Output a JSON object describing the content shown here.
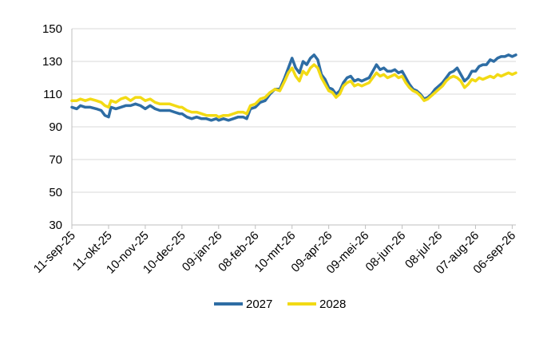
{
  "chart_data": {
    "type": "line",
    "ylim": [
      30,
      150
    ],
    "yticks": [
      30,
      50,
      70,
      90,
      110,
      130,
      150
    ],
    "xlim": [
      "2025-09-11",
      "2026-09-09"
    ],
    "xticks": [
      {
        "date": "2025-09-11",
        "label": "11-sep-25"
      },
      {
        "date": "2025-10-11",
        "label": "11-okt-25"
      },
      {
        "date": "2025-11-10",
        "label": "10-nov-25"
      },
      {
        "date": "2025-12-10",
        "label": "10-dec-25"
      },
      {
        "date": "2026-01-09",
        "label": "09-jan-26"
      },
      {
        "date": "2026-02-08",
        "label": "08-feb-26"
      },
      {
        "date": "2026-03-10",
        "label": "10-mrt-26"
      },
      {
        "date": "2026-04-09",
        "label": "09-apr-26"
      },
      {
        "date": "2026-05-09",
        "label": "09-mei-26"
      },
      {
        "date": "2026-06-08",
        "label": "08-jun-26"
      },
      {
        "date": "2026-07-08",
        "label": "08-jul-26"
      },
      {
        "date": "2026-08-07",
        "label": "07-aug-26"
      },
      {
        "date": "2026-09-06",
        "label": "06-sep-26"
      }
    ],
    "grid": "horizontal",
    "legend_position": "bottom",
    "series": [
      {
        "name": "2027",
        "color": "#2E6DA4",
        "points": [
          [
            "2025-09-11",
            102
          ],
          [
            "2025-09-15",
            101
          ],
          [
            "2025-09-18",
            103
          ],
          [
            "2025-09-22",
            102
          ],
          [
            "2025-09-26",
            102
          ],
          [
            "2025-10-01",
            101
          ],
          [
            "2025-10-05",
            100
          ],
          [
            "2025-10-08",
            97
          ],
          [
            "2025-10-11",
            96
          ],
          [
            "2025-10-13",
            102
          ],
          [
            "2025-10-17",
            101
          ],
          [
            "2025-10-21",
            102
          ],
          [
            "2025-10-25",
            103
          ],
          [
            "2025-10-29",
            103
          ],
          [
            "2025-11-02",
            104
          ],
          [
            "2025-11-06",
            103
          ],
          [
            "2025-11-10",
            101
          ],
          [
            "2025-11-14",
            103
          ],
          [
            "2025-11-18",
            101
          ],
          [
            "2025-11-22",
            100
          ],
          [
            "2025-11-26",
            100
          ],
          [
            "2025-11-30",
            100
          ],
          [
            "2025-12-04",
            99
          ],
          [
            "2025-12-08",
            98
          ],
          [
            "2025-12-10",
            98
          ],
          [
            "2025-12-14",
            96
          ],
          [
            "2025-12-18",
            95
          ],
          [
            "2025-12-22",
            96
          ],
          [
            "2025-12-26",
            95
          ],
          [
            "2025-12-30",
            95
          ],
          [
            "2026-01-03",
            94
          ],
          [
            "2026-01-07",
            95
          ],
          [
            "2026-01-09",
            94
          ],
          [
            "2026-01-13",
            95
          ],
          [
            "2026-01-17",
            94
          ],
          [
            "2026-01-21",
            95
          ],
          [
            "2026-01-25",
            96
          ],
          [
            "2026-01-29",
            96
          ],
          [
            "2026-02-01",
            95
          ],
          [
            "2026-02-04",
            101
          ],
          [
            "2026-02-08",
            102
          ],
          [
            "2026-02-12",
            105
          ],
          [
            "2026-02-16",
            106
          ],
          [
            "2026-02-20",
            110
          ],
          [
            "2026-02-24",
            113
          ],
          [
            "2026-02-28",
            113
          ],
          [
            "2026-03-04",
            120
          ],
          [
            "2026-03-07",
            126
          ],
          [
            "2026-03-10",
            132
          ],
          [
            "2026-03-13",
            126
          ],
          [
            "2026-03-16",
            123
          ],
          [
            "2026-03-19",
            130
          ],
          [
            "2026-03-22",
            128
          ],
          [
            "2026-03-25",
            132
          ],
          [
            "2026-03-28",
            134
          ],
          [
            "2026-03-31",
            131
          ],
          [
            "2026-04-03",
            122
          ],
          [
            "2026-04-06",
            119
          ],
          [
            "2026-04-09",
            114
          ],
          [
            "2026-04-12",
            113
          ],
          [
            "2026-04-15",
            110
          ],
          [
            "2026-04-18",
            112
          ],
          [
            "2026-04-21",
            117
          ],
          [
            "2026-04-24",
            120
          ],
          [
            "2026-04-27",
            121
          ],
          [
            "2026-04-30",
            118
          ],
          [
            "2026-05-03",
            119
          ],
          [
            "2026-05-06",
            118
          ],
          [
            "2026-05-09",
            119
          ],
          [
            "2026-05-12",
            120
          ],
          [
            "2026-05-15",
            124
          ],
          [
            "2026-05-18",
            128
          ],
          [
            "2026-05-21",
            125
          ],
          [
            "2026-05-24",
            126
          ],
          [
            "2026-05-27",
            124
          ],
          [
            "2026-05-30",
            124
          ],
          [
            "2026-06-02",
            125
          ],
          [
            "2026-06-05",
            123
          ],
          [
            "2026-06-08",
            124
          ],
          [
            "2026-06-11",
            120
          ],
          [
            "2026-06-14",
            116
          ],
          [
            "2026-06-17",
            113
          ],
          [
            "2026-06-20",
            112
          ],
          [
            "2026-06-23",
            110
          ],
          [
            "2026-06-26",
            107
          ],
          [
            "2026-06-29",
            108
          ],
          [
            "2026-07-02",
            110
          ],
          [
            "2026-07-05",
            113
          ],
          [
            "2026-07-08",
            115
          ],
          [
            "2026-07-11",
            117
          ],
          [
            "2026-07-14",
            120
          ],
          [
            "2026-07-17",
            123
          ],
          [
            "2026-07-20",
            124
          ],
          [
            "2026-07-23",
            126
          ],
          [
            "2026-07-26",
            122
          ],
          [
            "2026-07-29",
            118
          ],
          [
            "2026-08-01",
            120
          ],
          [
            "2026-08-04",
            124
          ],
          [
            "2026-08-07",
            124
          ],
          [
            "2026-08-10",
            127
          ],
          [
            "2026-08-13",
            128
          ],
          [
            "2026-08-16",
            128
          ],
          [
            "2026-08-19",
            131
          ],
          [
            "2026-08-22",
            130
          ],
          [
            "2026-08-25",
            132
          ],
          [
            "2026-08-28",
            133
          ],
          [
            "2026-08-31",
            133
          ],
          [
            "2026-09-03",
            134
          ],
          [
            "2026-09-06",
            133
          ],
          [
            "2026-09-09",
            134
          ]
        ]
      },
      {
        "name": "2028",
        "color": "#F2DA14",
        "points": [
          [
            "2025-09-11",
            106
          ],
          [
            "2025-09-15",
            106
          ],
          [
            "2025-09-18",
            107
          ],
          [
            "2025-09-22",
            106
          ],
          [
            "2025-09-26",
            107
          ],
          [
            "2025-10-01",
            106
          ],
          [
            "2025-10-05",
            105
          ],
          [
            "2025-10-08",
            103
          ],
          [
            "2025-10-11",
            102
          ],
          [
            "2025-10-13",
            106
          ],
          [
            "2025-10-17",
            105
          ],
          [
            "2025-10-21",
            107
          ],
          [
            "2025-10-25",
            108
          ],
          [
            "2025-10-29",
            106
          ],
          [
            "2025-11-02",
            108
          ],
          [
            "2025-11-06",
            108
          ],
          [
            "2025-11-10",
            106
          ],
          [
            "2025-11-14",
            107
          ],
          [
            "2025-11-18",
            105
          ],
          [
            "2025-11-22",
            104
          ],
          [
            "2025-11-26",
            104
          ],
          [
            "2025-11-30",
            104
          ],
          [
            "2025-12-04",
            103
          ],
          [
            "2025-12-08",
            102
          ],
          [
            "2025-12-10",
            102
          ],
          [
            "2025-12-14",
            100
          ],
          [
            "2025-12-18",
            99
          ],
          [
            "2025-12-22",
            99
          ],
          [
            "2025-12-26",
            98
          ],
          [
            "2025-12-30",
            97
          ],
          [
            "2026-01-03",
            97
          ],
          [
            "2026-01-07",
            97
          ],
          [
            "2026-01-09",
            96
          ],
          [
            "2026-01-13",
            97
          ],
          [
            "2026-01-17",
            97
          ],
          [
            "2026-01-21",
            98
          ],
          [
            "2026-01-25",
            99
          ],
          [
            "2026-01-29",
            99
          ],
          [
            "2026-02-01",
            98
          ],
          [
            "2026-02-04",
            103
          ],
          [
            "2026-02-08",
            104
          ],
          [
            "2026-02-12",
            107
          ],
          [
            "2026-02-16",
            108
          ],
          [
            "2026-02-20",
            111
          ],
          [
            "2026-02-24",
            113
          ],
          [
            "2026-02-28",
            112
          ],
          [
            "2026-03-04",
            118
          ],
          [
            "2026-03-07",
            123
          ],
          [
            "2026-03-10",
            126
          ],
          [
            "2026-03-13",
            121
          ],
          [
            "2026-03-16",
            118
          ],
          [
            "2026-03-19",
            124
          ],
          [
            "2026-03-22",
            122
          ],
          [
            "2026-03-25",
            126
          ],
          [
            "2026-03-28",
            128
          ],
          [
            "2026-03-31",
            126
          ],
          [
            "2026-04-03",
            120
          ],
          [
            "2026-04-06",
            116
          ],
          [
            "2026-04-09",
            112
          ],
          [
            "2026-04-12",
            111
          ],
          [
            "2026-04-15",
            108
          ],
          [
            "2026-04-18",
            110
          ],
          [
            "2026-04-21",
            115
          ],
          [
            "2026-04-24",
            117
          ],
          [
            "2026-04-27",
            118
          ],
          [
            "2026-04-30",
            115
          ],
          [
            "2026-05-03",
            116
          ],
          [
            "2026-05-06",
            115
          ],
          [
            "2026-05-09",
            116
          ],
          [
            "2026-05-12",
            117
          ],
          [
            "2026-05-15",
            120
          ],
          [
            "2026-05-18",
            123
          ],
          [
            "2026-05-21",
            121
          ],
          [
            "2026-05-24",
            122
          ],
          [
            "2026-05-27",
            120
          ],
          [
            "2026-05-30",
            121
          ],
          [
            "2026-06-02",
            122
          ],
          [
            "2026-06-05",
            120
          ],
          [
            "2026-06-08",
            121
          ],
          [
            "2026-06-11",
            117
          ],
          [
            "2026-06-14",
            114
          ],
          [
            "2026-06-17",
            112
          ],
          [
            "2026-06-20",
            111
          ],
          [
            "2026-06-23",
            109
          ],
          [
            "2026-06-26",
            106
          ],
          [
            "2026-06-29",
            107
          ],
          [
            "2026-07-02",
            109
          ],
          [
            "2026-07-05",
            111
          ],
          [
            "2026-07-08",
            113
          ],
          [
            "2026-07-11",
            115
          ],
          [
            "2026-07-14",
            118
          ],
          [
            "2026-07-17",
            120
          ],
          [
            "2026-07-20",
            121
          ],
          [
            "2026-07-23",
            120
          ],
          [
            "2026-07-26",
            118
          ],
          [
            "2026-07-29",
            114
          ],
          [
            "2026-08-01",
            116
          ],
          [
            "2026-08-04",
            119
          ],
          [
            "2026-08-07",
            118
          ],
          [
            "2026-08-10",
            120
          ],
          [
            "2026-08-13",
            119
          ],
          [
            "2026-08-16",
            120
          ],
          [
            "2026-08-19",
            121
          ],
          [
            "2026-08-22",
            120
          ],
          [
            "2026-08-25",
            122
          ],
          [
            "2026-08-28",
            121
          ],
          [
            "2026-08-31",
            122
          ],
          [
            "2026-09-03",
            123
          ],
          [
            "2026-09-06",
            122
          ],
          [
            "2026-09-09",
            123
          ]
        ]
      }
    ]
  }
}
